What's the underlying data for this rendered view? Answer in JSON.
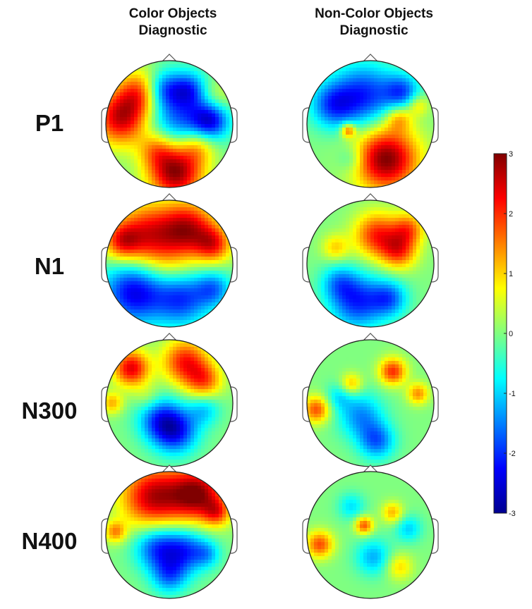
{
  "columns": [
    {
      "line1": "Color Objects",
      "line2": "Diagnostic"
    },
    {
      "line1": "Non-Color Objects",
      "line2": "Diagnostic"
    }
  ],
  "rows": [
    {
      "label": "P1"
    },
    {
      "label": "N1"
    },
    {
      "label": "N300"
    },
    {
      "label": "N400"
    }
  ],
  "colorbar": {
    "min": -3,
    "max": 3,
    "ticks": [
      "3",
      "2",
      "1",
      "0",
      "-1",
      "-2",
      "-3"
    ],
    "colors": [
      "#00008f",
      "#0000ff",
      "#0080ff",
      "#00ffff",
      "#80ff80",
      "#ffff00",
      "#ff8000",
      "#ff0000",
      "#800000"
    ]
  },
  "maps": [
    [
      {
        "blobs": [
          [
            -0.75,
            0.1,
            0.3,
            2.6
          ],
          [
            -0.45,
            0.5,
            0.25,
            1.8
          ],
          [
            0.1,
            -0.75,
            0.3,
            3.0
          ],
          [
            0.45,
            -0.35,
            0.2,
            1.2
          ],
          [
            -0.2,
            -0.4,
            0.2,
            1.2
          ],
          [
            0.2,
            0.15,
            0.4,
            -1.8
          ],
          [
            0.65,
            0.05,
            0.2,
            -1.8
          ],
          [
            -0.1,
            0.55,
            0.2,
            -1.4
          ],
          [
            0.3,
            0.55,
            0.18,
            -1.2
          ],
          [
            0.75,
            0.45,
            0.2,
            0.8
          ]
        ]
      },
      {
        "blobs": [
          [
            -0.35,
            0.45,
            0.35,
            2.2
          ],
          [
            0.3,
            0.55,
            0.3,
            2.4
          ],
          [
            0.7,
            0.3,
            0.2,
            1.8
          ],
          [
            -0.75,
            0.35,
            0.2,
            1.6
          ],
          [
            -0.55,
            -0.45,
            0.35,
            -2.4
          ],
          [
            0.2,
            -0.55,
            0.3,
            -1.9
          ],
          [
            0.7,
            -0.4,
            0.2,
            -1.4
          ],
          [
            0.0,
            -0.05,
            0.3,
            0.6
          ]
        ]
      },
      {
        "blobs": [
          [
            -0.6,
            0.55,
            0.2,
            2.4
          ],
          [
            0.25,
            0.65,
            0.25,
            2.1
          ],
          [
            0.55,
            0.35,
            0.2,
            1.6
          ],
          [
            -0.9,
            0.0,
            0.12,
            1.2
          ],
          [
            -0.15,
            -0.25,
            0.25,
            -1.6
          ],
          [
            0.1,
            -0.45,
            0.25,
            -2.0
          ],
          [
            0.55,
            -0.1,
            0.18,
            -1.0
          ],
          [
            -0.35,
            0.1,
            0.15,
            0.5
          ]
        ]
      },
      {
        "blobs": [
          [
            -0.25,
            0.6,
            0.35,
            2.6
          ],
          [
            0.45,
            0.65,
            0.3,
            2.8
          ],
          [
            0.75,
            0.35,
            0.15,
            1.4
          ],
          [
            -0.85,
            0.05,
            0.12,
            1.4
          ],
          [
            -0.2,
            -0.2,
            0.25,
            -1.8
          ],
          [
            0.25,
            -0.25,
            0.25,
            -1.8
          ],
          [
            0.0,
            -0.65,
            0.2,
            -1.4
          ],
          [
            0.6,
            -0.3,
            0.15,
            -0.9
          ]
        ]
      }
    ],
    [
      {
        "blobs": [
          [
            0.25,
            -0.55,
            0.35,
            3.0
          ],
          [
            -0.35,
            -0.1,
            0.08,
            1.8
          ],
          [
            0.45,
            0.1,
            0.15,
            1.2
          ],
          [
            0.75,
            0.3,
            0.12,
            1.0
          ],
          [
            -0.1,
            0.45,
            0.35,
            -2.0
          ],
          [
            0.5,
            0.5,
            0.2,
            -1.6
          ],
          [
            -0.6,
            0.3,
            0.25,
            -1.6
          ],
          [
            -0.3,
            -0.55,
            0.15,
            -0.7
          ]
        ]
      },
      {
        "blobs": [
          [
            0.1,
            0.45,
            0.25,
            2.0
          ],
          [
            0.45,
            0.2,
            0.2,
            1.8
          ],
          [
            0.6,
            0.55,
            0.18,
            1.5
          ],
          [
            -0.55,
            0.25,
            0.15,
            1.0
          ],
          [
            -0.2,
            -0.6,
            0.3,
            -2.0
          ],
          [
            0.3,
            -0.55,
            0.2,
            -1.5
          ],
          [
            -0.5,
            -0.3,
            0.2,
            -1.1
          ]
        ]
      },
      {
        "blobs": [
          [
            -0.85,
            -0.1,
            0.15,
            1.8
          ],
          [
            0.35,
            0.5,
            0.15,
            2.0
          ],
          [
            0.75,
            0.15,
            0.12,
            1.4
          ],
          [
            -0.3,
            0.3,
            0.12,
            1.2
          ],
          [
            -0.15,
            -0.2,
            0.25,
            -1.4
          ],
          [
            0.1,
            -0.6,
            0.2,
            -1.6
          ],
          [
            -0.5,
            0.1,
            0.15,
            -0.8
          ]
        ]
      },
      {
        "blobs": [
          [
            -0.8,
            -0.15,
            0.15,
            1.8
          ],
          [
            -0.1,
            0.15,
            0.1,
            1.8
          ],
          [
            0.35,
            0.35,
            0.12,
            1.2
          ],
          [
            0.45,
            -0.5,
            0.15,
            1.0
          ],
          [
            0.05,
            -0.35,
            0.2,
            -1.2
          ],
          [
            -0.3,
            0.45,
            0.15,
            -0.9
          ],
          [
            0.6,
            0.1,
            0.15,
            -1.0
          ]
        ]
      }
    ]
  ]
}
